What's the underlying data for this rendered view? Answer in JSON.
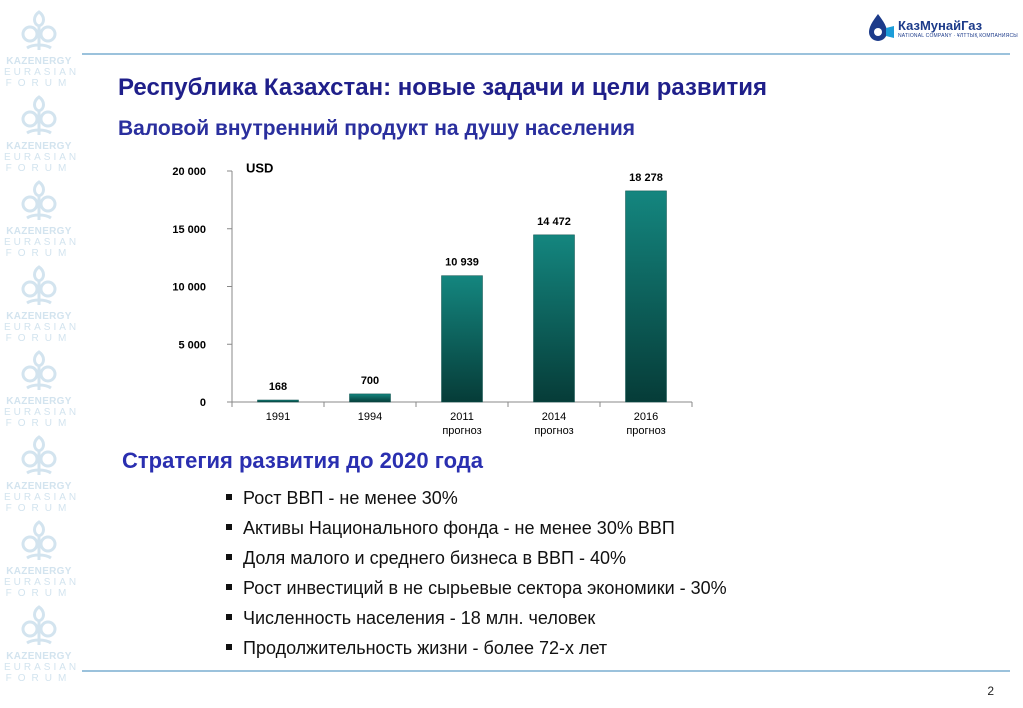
{
  "side_brand": {
    "line1": "KAZENERGY",
    "line2": "EURASIAN",
    "line3": "FORUM"
  },
  "logo": {
    "name": "КазМунайГаз",
    "sub": "NATIONAL COMPANY · ҰЛТТЫҚ КОМПАНИЯСЫ"
  },
  "title": "Республика Казахстан: новые задачи и цели развития",
  "subtitle": "Валовой внутренний продукт на душу населения",
  "chart_data": {
    "type": "bar",
    "unit_label": "USD",
    "categories": [
      [
        "1991"
      ],
      [
        "1994"
      ],
      [
        "2011",
        "прогноз"
      ],
      [
        "2014",
        "прогноз"
      ],
      [
        "2016",
        "прогноз"
      ]
    ],
    "values": [
      168,
      700,
      10939,
      14472,
      18278
    ],
    "value_labels": [
      "168",
      "700",
      "10 939",
      "14 472",
      "18 278"
    ],
    "yticks": [
      0,
      5000,
      10000,
      15000,
      20000
    ],
    "ytick_labels": [
      "0",
      "5 000",
      "10 000",
      "15 000",
      "20 000"
    ],
    "ylim": [
      0,
      20000
    ],
    "bar_color_top": "#14867f",
    "bar_color_bottom": "#063c38",
    "grid": false,
    "legend": "none"
  },
  "strategy_title": "Стратегия развития до 2020 года",
  "bullets": [
    "Рост ВВП - не менее 30%",
    "Активы Национального фонда - не менее 30% ВВП",
    "Доля малого и среднего бизнеса в ВВП - 40%",
    "Рост инвестиций в не сырьевые сектора экономики - 30%",
    "Численность населения - 18 млн. человек",
    "Продолжительность жизни - более 72-х лет"
  ],
  "page_number": "2"
}
